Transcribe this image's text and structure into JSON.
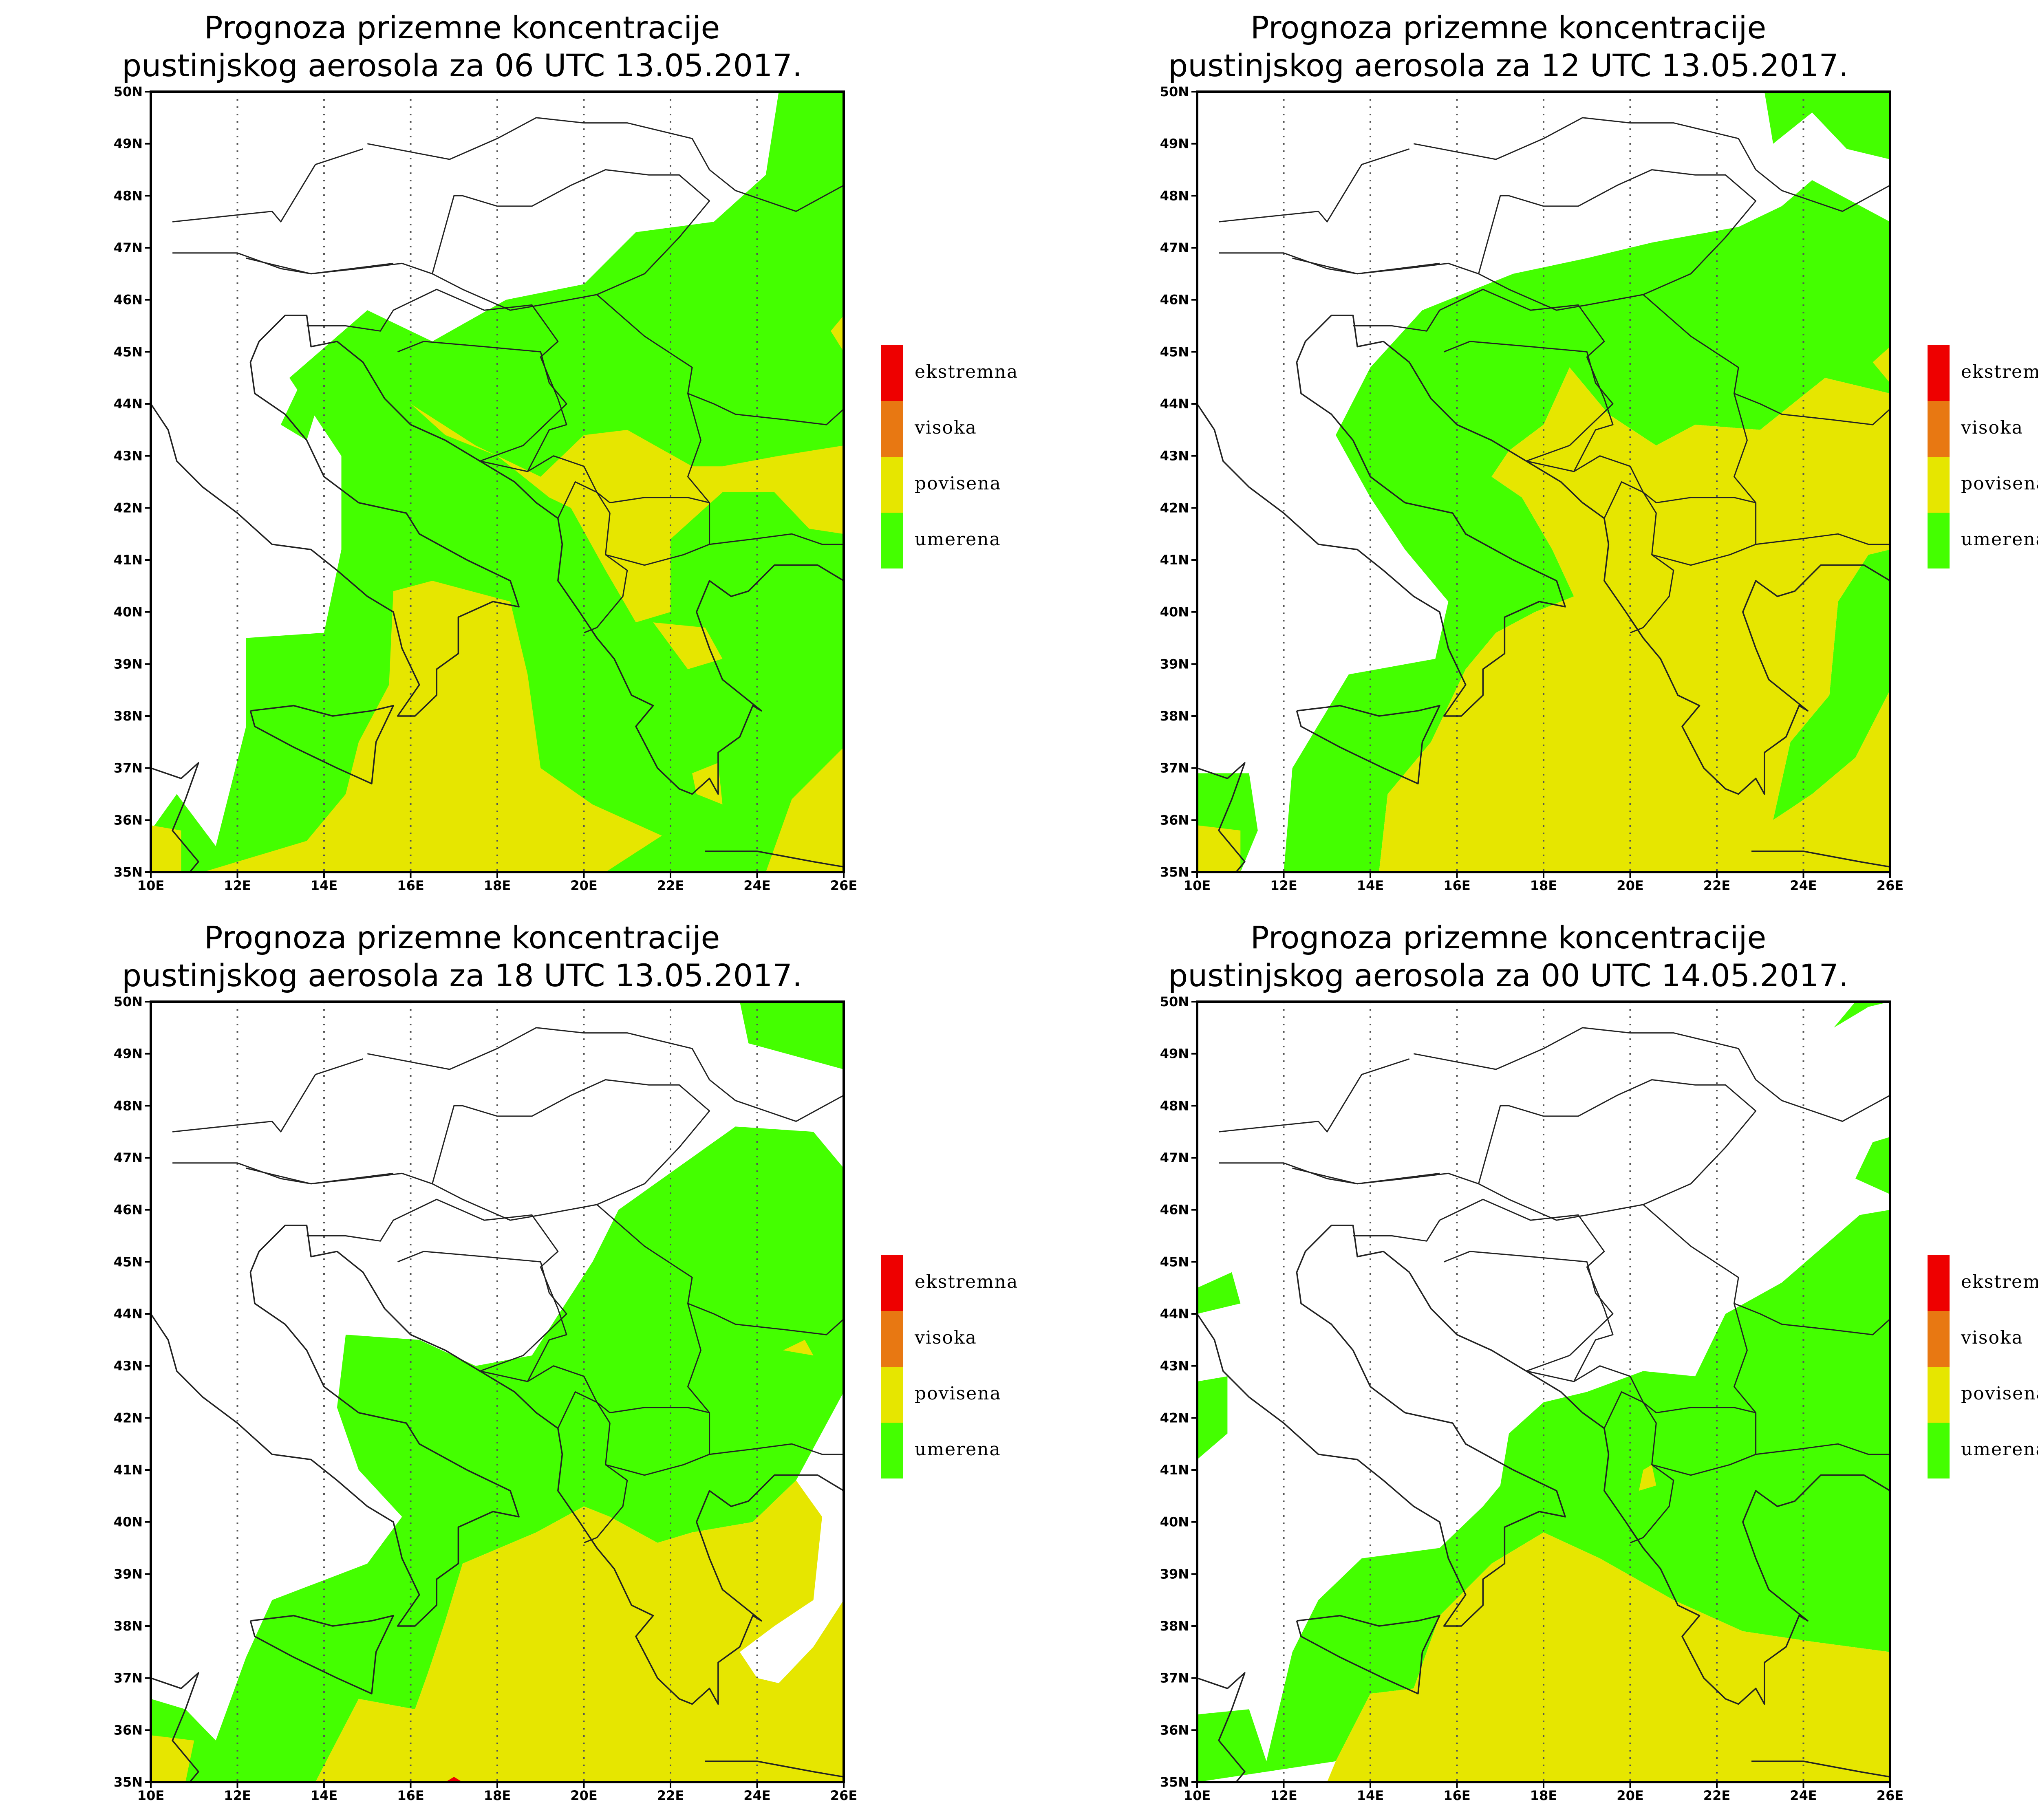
{
  "colors": {
    "ekstremna": "#ee0000",
    "visoka": "#e87812",
    "povisena": "#e6e600",
    "umerena": "#44ff00",
    "border": "#222222",
    "grid": "#555555"
  },
  "legend": [
    {
      "key": "ekstremna",
      "label": "ekstremna",
      "color": "#ee0000"
    },
    {
      "key": "visoka",
      "label": "visoka",
      "color": "#e87812"
    },
    {
      "key": "povisena",
      "label": "povisena",
      "color": "#e6e600"
    },
    {
      "key": "umerena",
      "label": "umerena",
      "color": "#44ff00"
    }
  ],
  "axes": {
    "x_ticks": [
      "10E",
      "12E",
      "14E",
      "16E",
      "18E",
      "20E",
      "22E",
      "24E",
      "26E"
    ],
    "y_ticks": [
      "35N",
      "36N",
      "37N",
      "38N",
      "39N",
      "40N",
      "41N",
      "42N",
      "43N",
      "44N",
      "45N",
      "46N",
      "47N",
      "48N",
      "49N",
      "50N"
    ],
    "lon_range": [
      10,
      26
    ],
    "lat_range": [
      35,
      50
    ]
  },
  "panels": [
    {
      "title_line1": "Prognoza prizemne koncentracije",
      "title_line2": "pustinjskog aerosola za 06 UTC 13.05.2017."
    },
    {
      "title_line1": "Prognoza prizemne koncentracije",
      "title_line2": "pustinjskog aerosola za 12 UTC 13.05.2017."
    },
    {
      "title_line1": "Prognoza prizemne koncentracije",
      "title_line2": "pustinjskog aerosola za 18 UTC 13.05.2017."
    },
    {
      "title_line1": "Prognoza prizemne koncentracije",
      "title_line2": "pustinjskog aerosola za 00 UTC 14.05.2017."
    }
  ]
}
